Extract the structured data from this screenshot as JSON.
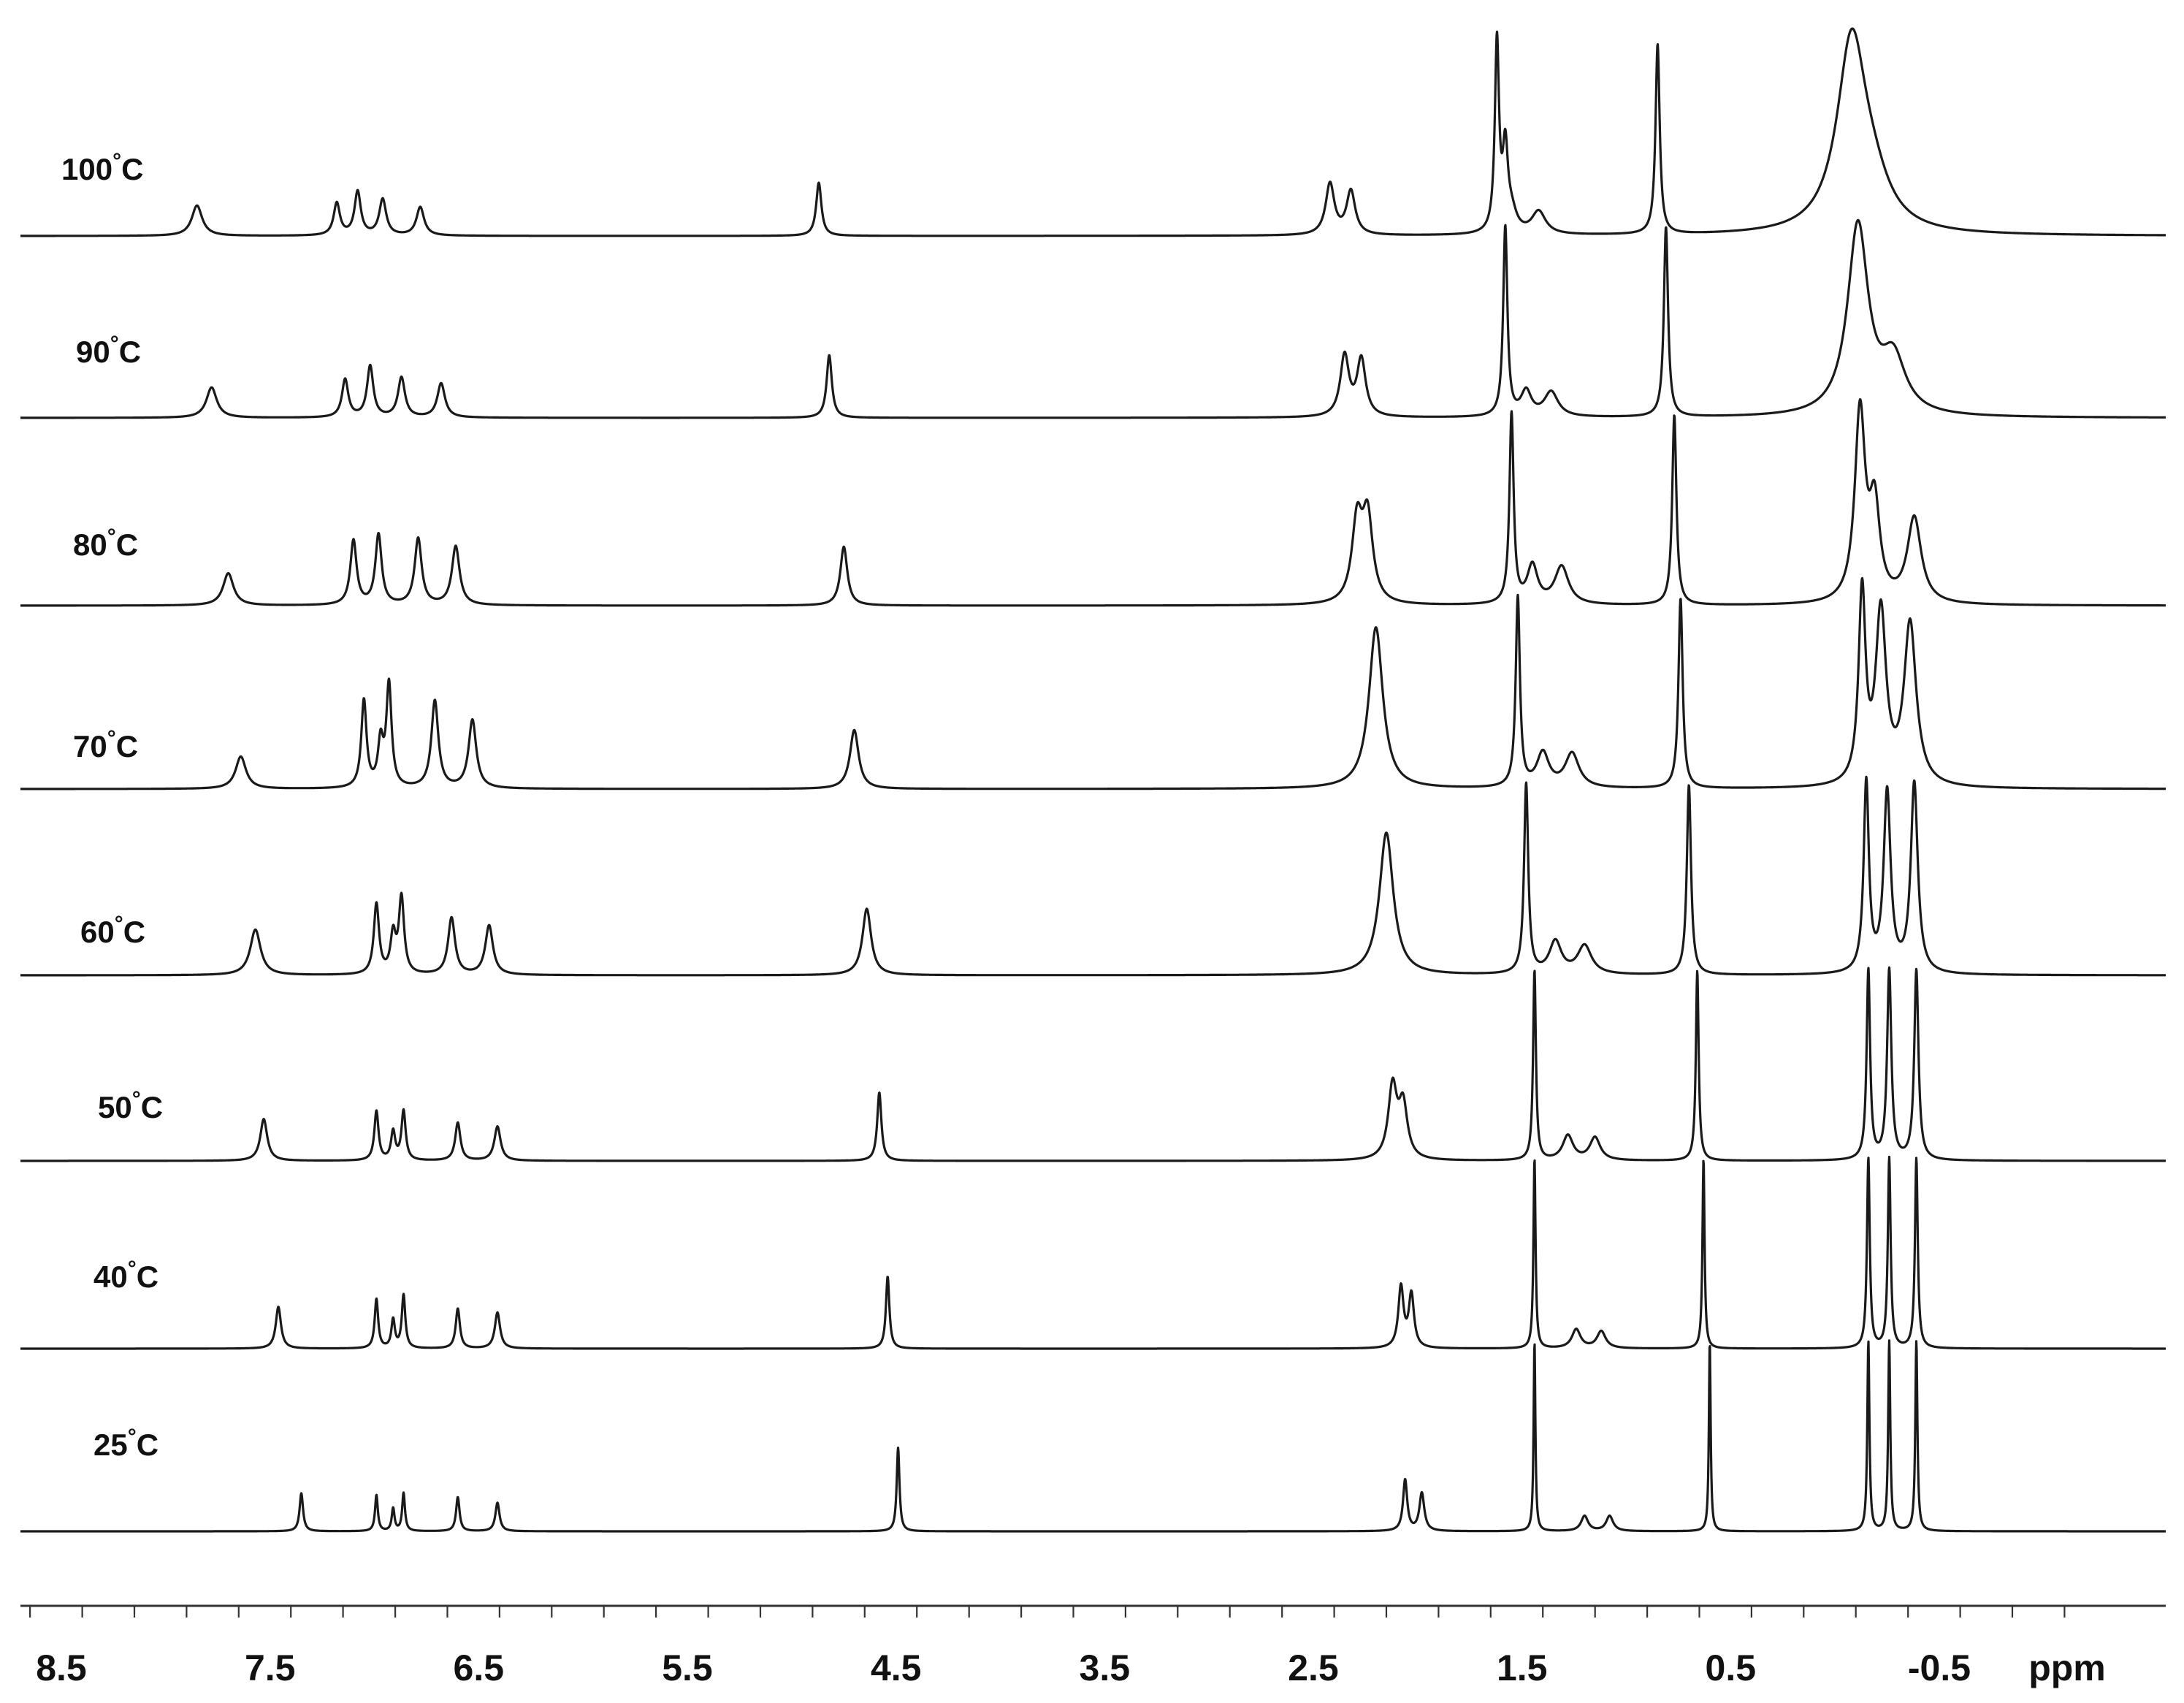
{
  "chart_data": {
    "type": "line",
    "x_unit": "ppm",
    "x_axis": {
      "min": -1.2,
      "max": 8.9,
      "reversed": true,
      "major_step": 1.0,
      "minor_step": 0.25,
      "tick_labels": [
        "8.5",
        "7.5",
        "6.5",
        "5.5",
        "4.5",
        "3.5",
        "2.5",
        "1.5",
        "0.5",
        "-0.5"
      ],
      "tick_values": [
        8.5,
        7.5,
        6.5,
        5.5,
        4.5,
        3.5,
        2.5,
        1.5,
        0.5,
        -0.5
      ]
    },
    "grid": false,
    "series": [
      {
        "name": "100°C",
        "temp": "100",
        "unit": "°C",
        "peaks": [
          {
            "x": 7.85,
            "h": 0.16,
            "w": 0.03
          },
          {
            "x": 7.18,
            "h": 0.17,
            "w": 0.018
          },
          {
            "x": 7.08,
            "h": 0.23,
            "w": 0.018
          },
          {
            "x": 6.96,
            "h": 0.19,
            "w": 0.02
          },
          {
            "x": 6.78,
            "h": 0.15,
            "w": 0.022
          },
          {
            "x": 4.87,
            "h": 0.28,
            "w": 0.015
          },
          {
            "x": 2.42,
            "h": 0.27,
            "w": 0.025
          },
          {
            "x": 2.32,
            "h": 0.23,
            "w": 0.025
          },
          {
            "x": 1.62,
            "h": 1.0,
            "w": 0.012
          },
          {
            "x": 1.58,
            "h": 0.42,
            "w": 0.015
          },
          {
            "x": 1.55,
            "h": 0.1,
            "w": 0.03
          },
          {
            "x": 1.42,
            "h": 0.12,
            "w": 0.04
          },
          {
            "x": 0.85,
            "h": 1.0,
            "w": 0.012
          },
          {
            "x": -0.08,
            "h": 1.0,
            "w": 0.085
          },
          {
            "x": -0.18,
            "h": 0.18,
            "w": 0.1
          }
        ]
      },
      {
        "name": "90°C",
        "temp": "90",
        "unit": "°C",
        "peaks": [
          {
            "x": 7.78,
            "h": 0.16,
            "w": 0.03
          },
          {
            "x": 7.14,
            "h": 0.2,
            "w": 0.018
          },
          {
            "x": 7.02,
            "h": 0.27,
            "w": 0.018
          },
          {
            "x": 6.87,
            "h": 0.21,
            "w": 0.02
          },
          {
            "x": 6.68,
            "h": 0.18,
            "w": 0.022
          },
          {
            "x": 4.82,
            "h": 0.33,
            "w": 0.015
          },
          {
            "x": 2.35,
            "h": 0.32,
            "w": 0.025
          },
          {
            "x": 2.27,
            "h": 0.3,
            "w": 0.025
          },
          {
            "x": 1.58,
            "h": 1.0,
            "w": 0.012
          },
          {
            "x": 1.48,
            "h": 0.13,
            "w": 0.03
          },
          {
            "x": 1.36,
            "h": 0.13,
            "w": 0.04
          },
          {
            "x": 0.81,
            "h": 1.0,
            "w": 0.012
          },
          {
            "x": -0.11,
            "h": 1.0,
            "w": 0.06
          },
          {
            "x": -0.28,
            "h": 0.28,
            "w": 0.07
          }
        ]
      },
      {
        "name": "80°C",
        "temp": "80",
        "unit": "°C",
        "peaks": [
          {
            "x": 7.7,
            "h": 0.17,
            "w": 0.03
          },
          {
            "x": 7.1,
            "h": 0.34,
            "w": 0.018
          },
          {
            "x": 6.98,
            "h": 0.37,
            "w": 0.018
          },
          {
            "x": 6.79,
            "h": 0.35,
            "w": 0.02
          },
          {
            "x": 6.61,
            "h": 0.31,
            "w": 0.022
          },
          {
            "x": 4.75,
            "h": 0.31,
            "w": 0.02
          },
          {
            "x": 2.29,
            "h": 0.42,
            "w": 0.03
          },
          {
            "x": 2.24,
            "h": 0.44,
            "w": 0.03
          },
          {
            "x": 1.55,
            "h": 1.0,
            "w": 0.012
          },
          {
            "x": 1.45,
            "h": 0.2,
            "w": 0.03
          },
          {
            "x": 1.31,
            "h": 0.2,
            "w": 0.04
          },
          {
            "x": 0.77,
            "h": 1.0,
            "w": 0.012
          },
          {
            "x": -0.12,
            "h": 1.0,
            "w": 0.03
          },
          {
            "x": -0.19,
            "h": 0.48,
            "w": 0.03
          },
          {
            "x": -0.38,
            "h": 0.45,
            "w": 0.04
          }
        ]
      },
      {
        "name": "70°C",
        "temp": "70",
        "unit": "°C",
        "peaks": [
          {
            "x": 7.64,
            "h": 0.17,
            "w": 0.03
          },
          {
            "x": 7.05,
            "h": 0.46,
            "w": 0.015
          },
          {
            "x": 6.97,
            "h": 0.23,
            "w": 0.015
          },
          {
            "x": 6.93,
            "h": 0.54,
            "w": 0.015
          },
          {
            "x": 6.71,
            "h": 0.46,
            "w": 0.02
          },
          {
            "x": 6.53,
            "h": 0.36,
            "w": 0.022
          },
          {
            "x": 4.7,
            "h": 0.31,
            "w": 0.025
          },
          {
            "x": 2.2,
            "h": 0.85,
            "w": 0.04
          },
          {
            "x": 1.52,
            "h": 1.0,
            "w": 0.012
          },
          {
            "x": 1.4,
            "h": 0.18,
            "w": 0.035
          },
          {
            "x": 1.26,
            "h": 0.18,
            "w": 0.04
          },
          {
            "x": 0.74,
            "h": 1.0,
            "w": 0.012
          },
          {
            "x": -0.13,
            "h": 1.0,
            "w": 0.02
          },
          {
            "x": -0.22,
            "h": 0.9,
            "w": 0.03
          },
          {
            "x": -0.36,
            "h": 0.85,
            "w": 0.035
          }
        ]
      },
      {
        "name": "60°C",
        "temp": "60",
        "unit": "°C",
        "peaks": [
          {
            "x": 7.57,
            "h": 0.24,
            "w": 0.03
          },
          {
            "x": 6.99,
            "h": 0.37,
            "w": 0.015
          },
          {
            "x": 6.91,
            "h": 0.2,
            "w": 0.015
          },
          {
            "x": 6.87,
            "h": 0.4,
            "w": 0.015
          },
          {
            "x": 6.63,
            "h": 0.3,
            "w": 0.02
          },
          {
            "x": 6.45,
            "h": 0.26,
            "w": 0.022
          },
          {
            "x": 4.64,
            "h": 0.35,
            "w": 0.025
          },
          {
            "x": 2.15,
            "h": 0.75,
            "w": 0.04
          },
          {
            "x": 1.48,
            "h": 1.0,
            "w": 0.012
          },
          {
            "x": 1.34,
            "h": 0.17,
            "w": 0.035
          },
          {
            "x": 1.2,
            "h": 0.15,
            "w": 0.04
          },
          {
            "x": 0.7,
            "h": 1.0,
            "w": 0.012
          },
          {
            "x": -0.15,
            "h": 1.0,
            "w": 0.015
          },
          {
            "x": -0.25,
            "h": 0.95,
            "w": 0.02
          },
          {
            "x": -0.38,
            "h": 1.0,
            "w": 0.02
          }
        ]
      },
      {
        "name": "50°C",
        "temp": "50",
        "unit": "°C",
        "peaks": [
          {
            "x": 7.53,
            "h": 0.22,
            "w": 0.02
          },
          {
            "x": 6.99,
            "h": 0.26,
            "w": 0.012
          },
          {
            "x": 6.91,
            "h": 0.15,
            "w": 0.012
          },
          {
            "x": 6.86,
            "h": 0.26,
            "w": 0.012
          },
          {
            "x": 6.6,
            "h": 0.2,
            "w": 0.015
          },
          {
            "x": 6.41,
            "h": 0.18,
            "w": 0.018
          },
          {
            "x": 4.58,
            "h": 0.36,
            "w": 0.012
          },
          {
            "x": 2.12,
            "h": 0.38,
            "w": 0.025
          },
          {
            "x": 2.07,
            "h": 0.28,
            "w": 0.025
          },
          {
            "x": 1.44,
            "h": 1.0,
            "w": 0.008
          },
          {
            "x": 1.28,
            "h": 0.13,
            "w": 0.03
          },
          {
            "x": 1.15,
            "h": 0.12,
            "w": 0.03
          },
          {
            "x": 0.66,
            "h": 1.0,
            "w": 0.008
          },
          {
            "x": -0.16,
            "h": 1.0,
            "w": 0.01
          },
          {
            "x": -0.26,
            "h": 1.0,
            "w": 0.012
          },
          {
            "x": -0.39,
            "h": 1.0,
            "w": 0.012
          }
        ]
      },
      {
        "name": "40°C",
        "temp": "40",
        "unit": "°C",
        "peaks": [
          {
            "x": 7.46,
            "h": 0.22,
            "w": 0.015
          },
          {
            "x": 6.99,
            "h": 0.26,
            "w": 0.01
          },
          {
            "x": 6.91,
            "h": 0.15,
            "w": 0.01
          },
          {
            "x": 6.86,
            "h": 0.28,
            "w": 0.01
          },
          {
            "x": 6.6,
            "h": 0.21,
            "w": 0.012
          },
          {
            "x": 6.41,
            "h": 0.19,
            "w": 0.015
          },
          {
            "x": 4.54,
            "h": 0.38,
            "w": 0.01
          },
          {
            "x": 2.08,
            "h": 0.32,
            "w": 0.015
          },
          {
            "x": 2.03,
            "h": 0.28,
            "w": 0.015
          },
          {
            "x": 1.44,
            "h": 1.0,
            "w": 0.006
          },
          {
            "x": 1.24,
            "h": 0.1,
            "w": 0.025
          },
          {
            "x": 1.12,
            "h": 0.09,
            "w": 0.025
          },
          {
            "x": 0.63,
            "h": 1.0,
            "w": 0.006
          },
          {
            "x": -0.16,
            "h": 1.0,
            "w": 0.008
          },
          {
            "x": -0.26,
            "h": 1.0,
            "w": 0.008
          },
          {
            "x": -0.39,
            "h": 1.0,
            "w": 0.008
          }
        ]
      },
      {
        "name": "25°C",
        "temp": "25",
        "unit": "°C",
        "peaks": [
          {
            "x": 7.35,
            "h": 0.2,
            "w": 0.01
          },
          {
            "x": 6.99,
            "h": 0.19,
            "w": 0.008
          },
          {
            "x": 6.91,
            "h": 0.12,
            "w": 0.008
          },
          {
            "x": 6.86,
            "h": 0.2,
            "w": 0.008
          },
          {
            "x": 6.6,
            "h": 0.18,
            "w": 0.01
          },
          {
            "x": 6.41,
            "h": 0.15,
            "w": 0.012
          },
          {
            "x": 4.49,
            "h": 0.44,
            "w": 0.008
          },
          {
            "x": 2.06,
            "h": 0.27,
            "w": 0.012
          },
          {
            "x": 1.98,
            "h": 0.2,
            "w": 0.014
          },
          {
            "x": 1.44,
            "h": 1.0,
            "w": 0.005
          },
          {
            "x": 1.2,
            "h": 0.08,
            "w": 0.02
          },
          {
            "x": 1.08,
            "h": 0.08,
            "w": 0.02
          },
          {
            "x": 0.6,
            "h": 1.0,
            "w": 0.005
          },
          {
            "x": -0.16,
            "h": 1.0,
            "w": 0.006
          },
          {
            "x": -0.26,
            "h": 1.0,
            "w": 0.006
          },
          {
            "x": -0.39,
            "h": 1.0,
            "w": 0.006
          }
        ]
      }
    ]
  }
}
